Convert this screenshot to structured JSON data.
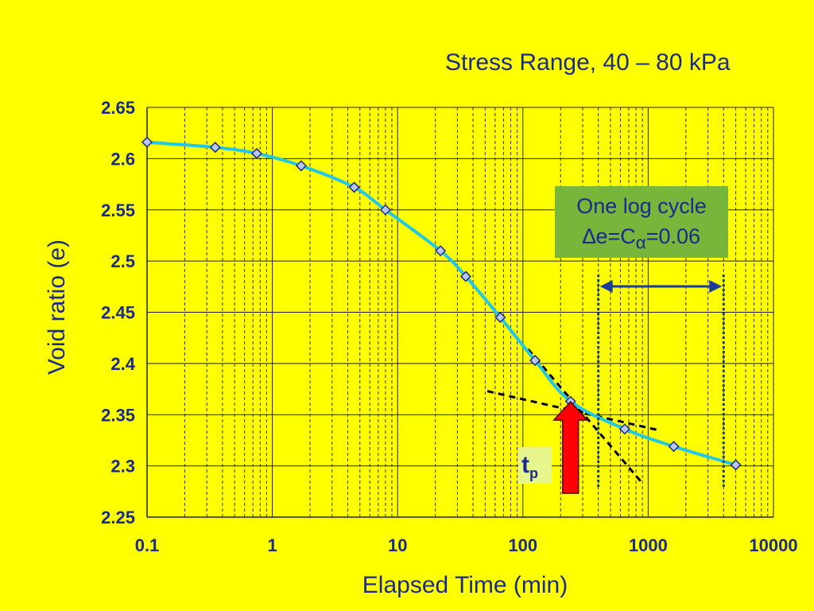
{
  "chart_data": {
    "type": "line",
    "title": "Stress Range, 40 – 80 kPa",
    "xlabel": "Elapsed Time (min)",
    "ylabel": "Void ratio (e)",
    "xscale": "log",
    "xlim": [
      0.1,
      10000
    ],
    "ylim": [
      2.25,
      2.65
    ],
    "xticks": [
      "0.1",
      "1",
      "10",
      "100",
      "1000",
      "10000"
    ],
    "yticks": [
      "2.65",
      "2.6",
      "2.55",
      "2.5",
      "2.45",
      "2.4",
      "2.35",
      "2.3",
      "2.25"
    ],
    "grid": true,
    "series": [
      {
        "x": [
          0.1,
          0.35,
          0.75,
          1.7,
          4.5,
          8,
          22,
          35,
          66,
          125,
          240,
          650,
          1600,
          5000
        ],
        "y": [
          2.616,
          2.611,
          2.605,
          2.593,
          2.572,
          2.55,
          2.51,
          2.485,
          2.445,
          2.403,
          2.363,
          2.336,
          2.319,
          2.301
        ],
        "color": "#22c8e6",
        "marker": "diamond"
      }
    ],
    "annotations": {
      "log_cycle_note_line1": "One log cycle",
      "log_cycle_note_line2_prefix": "∆e=C",
      "log_cycle_note_line2_subscript": "α",
      "log_cycle_note_line2_suffix": "=0.06",
      "log_cycle_start": 400,
      "log_cycle_end": 4000,
      "tp_label": "t",
      "tp_subscript": "p",
      "tp_time": 240
    }
  },
  "colors": {
    "background": "#ffff00",
    "text": "#1a2b8c",
    "curve": "#22c8e6",
    "arrow": "#ff0000",
    "note_bg": "#77b53b"
  }
}
